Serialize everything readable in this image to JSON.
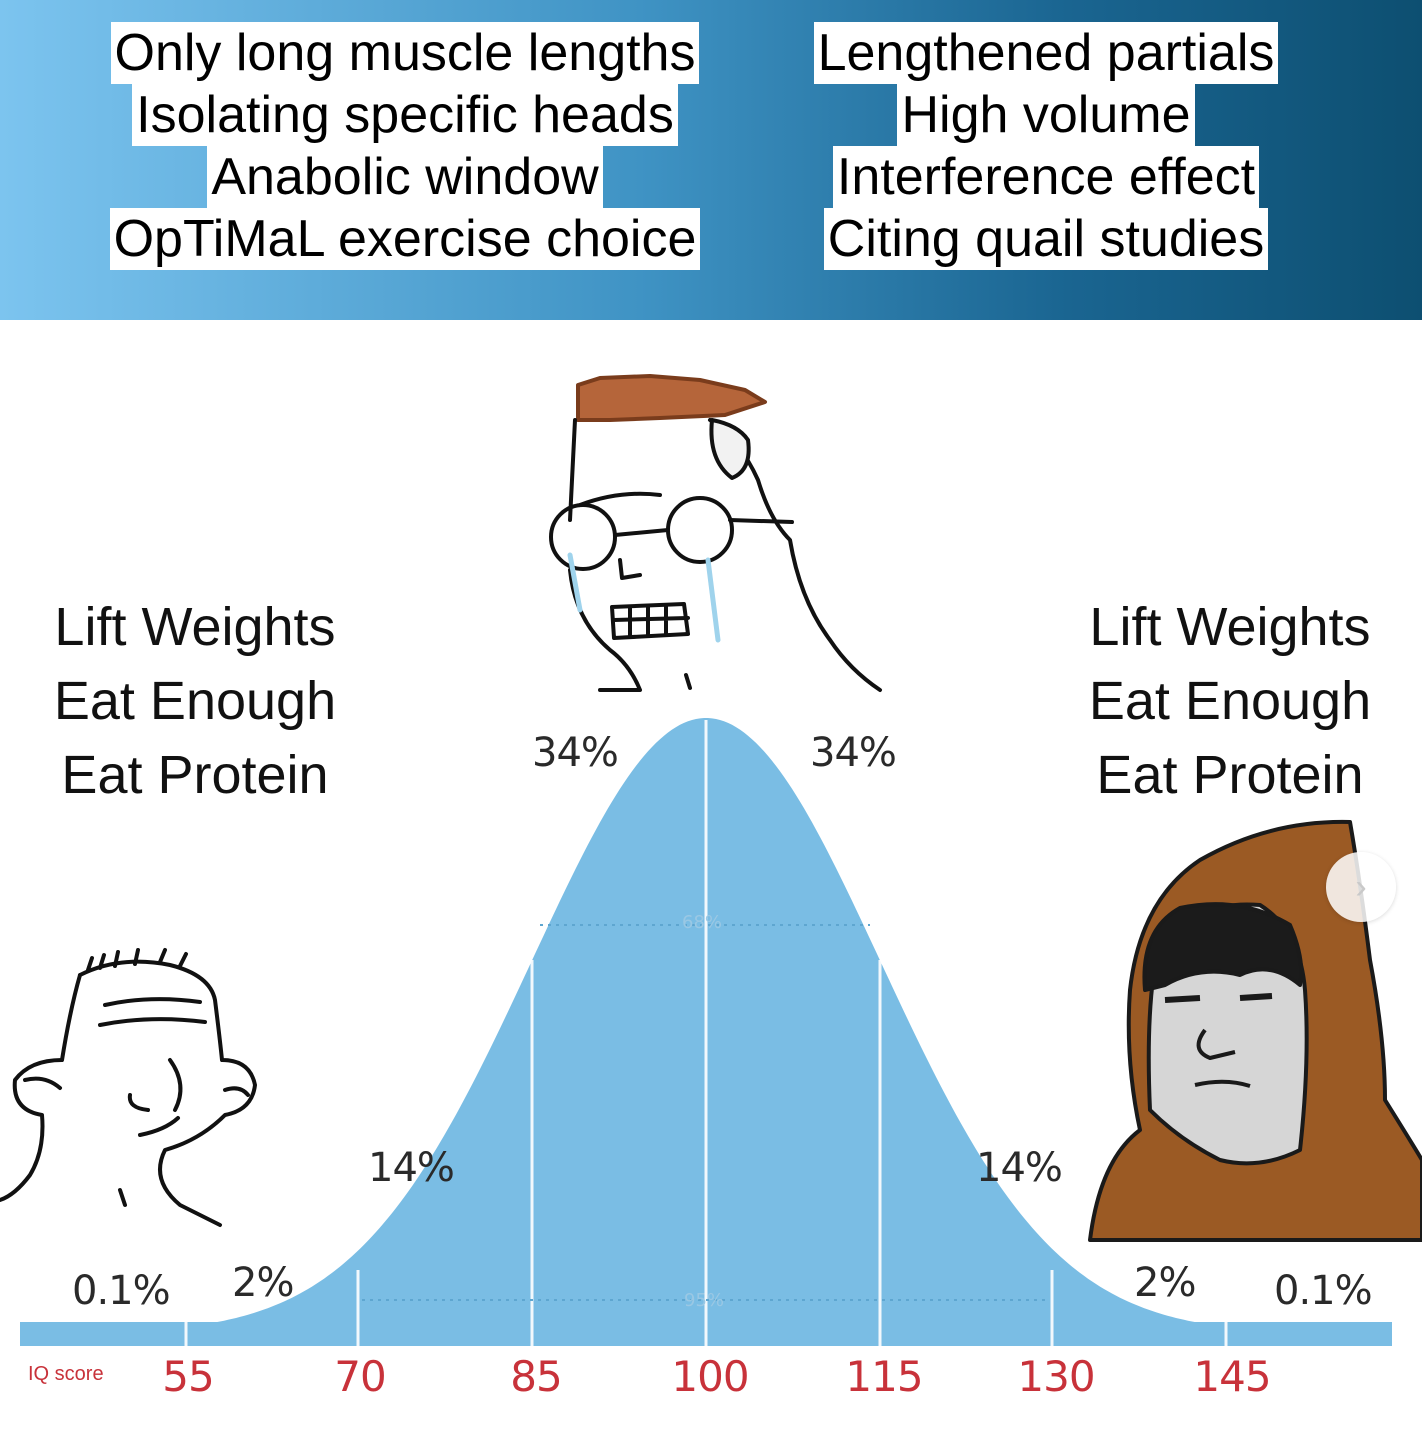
{
  "top_left_captions": [
    "Only long muscle lengths",
    "Isolating specific heads",
    "Anabolic window",
    "OpTiMaL exercise choice"
  ],
  "top_right_captions": [
    "Lengthened partials",
    "High volume",
    "Interference effect",
    "Citing quail studies"
  ],
  "left_list": [
    "Lift Weights",
    "Eat Enough",
    "Eat Protein"
  ],
  "right_list": [
    "Lift Weights",
    "Eat Enough",
    "Eat Protein"
  ],
  "percent_labels": {
    "far_left": "0.1%",
    "left_2": "2%",
    "left_14": "14%",
    "left_34": "34%",
    "right_34": "34%",
    "right_14": "14%",
    "right_2": "2%",
    "far_right": "0.1%",
    "inner_68": "68%",
    "inner_95": "95%"
  },
  "axis": {
    "label": "IQ score",
    "ticks": [
      "55",
      "70",
      "85",
      "100",
      "115",
      "130",
      "145"
    ]
  },
  "colors": {
    "curve": "#7abde4",
    "tick_text": "#c8323a",
    "hair": "#b5653a",
    "hood": "#9b5a24"
  },
  "nav": {
    "next_icon": "›"
  }
}
